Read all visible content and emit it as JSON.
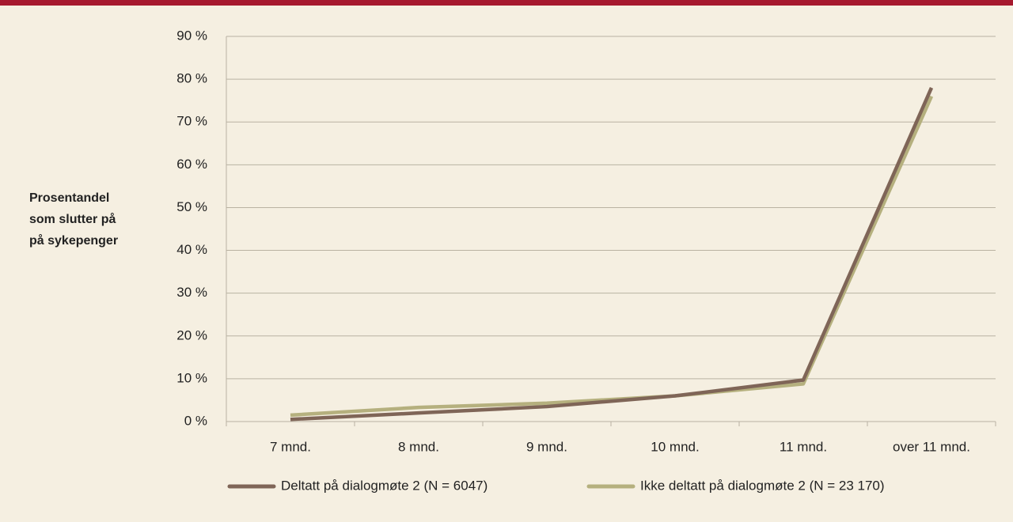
{
  "chart_data": {
    "type": "line",
    "ylabel": [
      "Prosentandel",
      "som slutter på",
      "på sykepenger"
    ],
    "categories": [
      "7 mnd.",
      "8 mnd.",
      "9 mnd.",
      "10 mnd.",
      "11 mnd.",
      "over 11 mnd."
    ],
    "series": [
      {
        "name": "Deltatt på dialogmøte 2 (N = 6047)",
        "color": "#7f6557",
        "values": [
          0.5,
          2,
          3.5,
          6,
          9.7,
          78
        ]
      },
      {
        "name": "Ikke deltatt på dialogmøte 2 (N = 23 170)",
        "color": "#b5b07e",
        "values": [
          1.5,
          3.3,
          4.3,
          6,
          8.8,
          76
        ]
      }
    ],
    "ylim": [
      0,
      90
    ],
    "yticks": [
      {
        "value": 0,
        "label": "0 %"
      },
      {
        "value": 10,
        "label": "10 %"
      },
      {
        "value": 20,
        "label": "20 %"
      },
      {
        "value": 30,
        "label": "30 %"
      },
      {
        "value": 40,
        "label": "40 %"
      },
      {
        "value": 50,
        "label": "50 %"
      },
      {
        "value": 60,
        "label": "60 %"
      },
      {
        "value": 70,
        "label": "70 %"
      },
      {
        "value": 80,
        "label": "80 %"
      },
      {
        "value": 90,
        "label": "90 %"
      }
    ],
    "grid": true,
    "legend": "bottom"
  }
}
